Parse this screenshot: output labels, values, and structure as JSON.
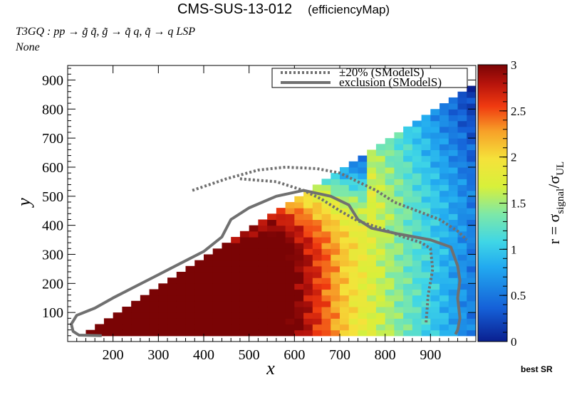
{
  "title": "CMS-SUS-13-012",
  "subtitle": "(efficiencyMap)",
  "process": "T3GQ : pp  → g̃ q̃, g̃ → q̃ q, q̃ → q LSP",
  "extra_note": "None",
  "best_sr_label": "best SR",
  "chart_data": {
    "type": "heatmap",
    "xlabel": "x",
    "ylabel": "y",
    "xlim": [
      100,
      1000
    ],
    "ylim": [
      0,
      950
    ],
    "xticks": [
      200,
      300,
      400,
      500,
      600,
      700,
      800,
      900
    ],
    "yticks": [
      100,
      200,
      300,
      400,
      500,
      600,
      700,
      800,
      900
    ],
    "colorbar": {
      "label": "r = σsignal/σUL",
      "range": [
        0,
        3
      ],
      "ticks": [
        0,
        0.5,
        1,
        1.5,
        2,
        2.5,
        3
      ],
      "tick_labels": [
        "0",
        "0.5",
        "1",
        "1.5",
        "2",
        "2.5",
        "3"
      ]
    },
    "legend": {
      "position": "top-right",
      "entries": [
        {
          "label": "±20% (SModelS)",
          "style": "dotted",
          "color": "#707070"
        },
        {
          "label": "exclusion (SModelS)",
          "style": "solid",
          "color": "#707070"
        }
      ]
    },
    "exclusion_contour": [
      [
        175,
        20
      ],
      [
        125,
        22
      ],
      [
        112,
        35
      ],
      [
        108,
        60
      ],
      [
        120,
        90
      ],
      [
        160,
        115
      ],
      [
        200,
        150
      ],
      [
        250,
        190
      ],
      [
        300,
        230
      ],
      [
        350,
        270
      ],
      [
        400,
        310
      ],
      [
        440,
        360
      ],
      [
        460,
        420
      ],
      [
        500,
        460
      ],
      [
        560,
        500
      ],
      [
        620,
        520
      ],
      [
        680,
        500
      ],
      [
        720,
        470
      ],
      [
        740,
        420
      ],
      [
        770,
        390
      ],
      [
        830,
        370
      ],
      [
        900,
        350
      ],
      [
        945,
        325
      ],
      [
        960,
        260
      ],
      [
        965,
        210
      ],
      [
        960,
        150
      ],
      [
        965,
        80
      ],
      [
        960,
        40
      ],
      [
        955,
        25
      ]
    ],
    "contour_plus20": [
      [
        375,
        520
      ],
      [
        450,
        560
      ],
      [
        520,
        590
      ],
      [
        580,
        600
      ],
      [
        650,
        595
      ],
      [
        700,
        580
      ],
      [
        740,
        550
      ],
      [
        780,
        520
      ],
      [
        820,
        480
      ],
      [
        870,
        450
      ],
      [
        920,
        420
      ],
      [
        960,
        380
      ],
      [
        980,
        350
      ]
    ],
    "contour_minus20": [
      [
        480,
        560
      ],
      [
        560,
        550
      ],
      [
        620,
        520
      ],
      [
        660,
        490
      ],
      [
        700,
        450
      ],
      [
        740,
        415
      ],
      [
        790,
        390
      ],
      [
        840,
        360
      ],
      [
        880,
        340
      ],
      [
        900,
        320
      ],
      [
        905,
        250
      ],
      [
        895,
        160
      ],
      [
        890,
        60
      ]
    ]
  }
}
